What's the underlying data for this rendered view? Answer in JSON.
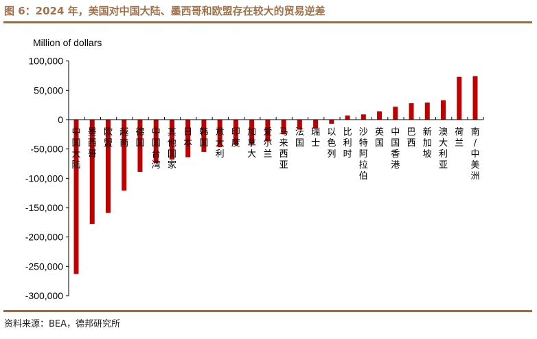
{
  "title": "图 6：2024 年，美国对中国大陆、墨西哥和欧盟存在较大的贸易逆差",
  "source": "资料来源：BEA，德邦研究所",
  "colors": {
    "bar": "#c00000",
    "title": "#a0714a",
    "rule": "#9b6a3f"
  },
  "chart_data": {
    "type": "bar",
    "ylabel": "Million of dollars",
    "ylim": [
      -300000,
      100000
    ],
    "yticks": [
      100000,
      50000,
      0,
      -50000,
      -100000,
      -150000,
      -200000,
      -250000,
      -300000
    ],
    "ytick_labels": [
      "100,000",
      "50,000",
      "0",
      "-50,000",
      "-100,000",
      "-150,000",
      "-200,000",
      "-250,000",
      "-300,000"
    ],
    "grid": false,
    "categories": [
      "中国大陆",
      "墨西哥",
      "欧盟",
      "越南",
      "德国",
      "中国台湾",
      "其他国家",
      "日本",
      "韩国",
      "意大利",
      "印度",
      "加拿大",
      "爱尔兰",
      "马来西亚",
      "法国",
      "瑞士",
      "以色列",
      "比利时",
      "沙特阿拉伯",
      "英国",
      "中国香港",
      "巴西",
      "新加坡",
      "澳大利亚",
      "荷兰",
      "南/中美洲"
    ],
    "values": [
      -263000,
      -178000,
      -159000,
      -121000,
      -89000,
      -74000,
      -68000,
      -64000,
      -55000,
      -47000,
      -43000,
      -41000,
      -37000,
      -25000,
      -17000,
      -15000,
      -7000,
      7000,
      9000,
      14000,
      22000,
      28000,
      29000,
      33000,
      73000,
      74000
    ]
  }
}
